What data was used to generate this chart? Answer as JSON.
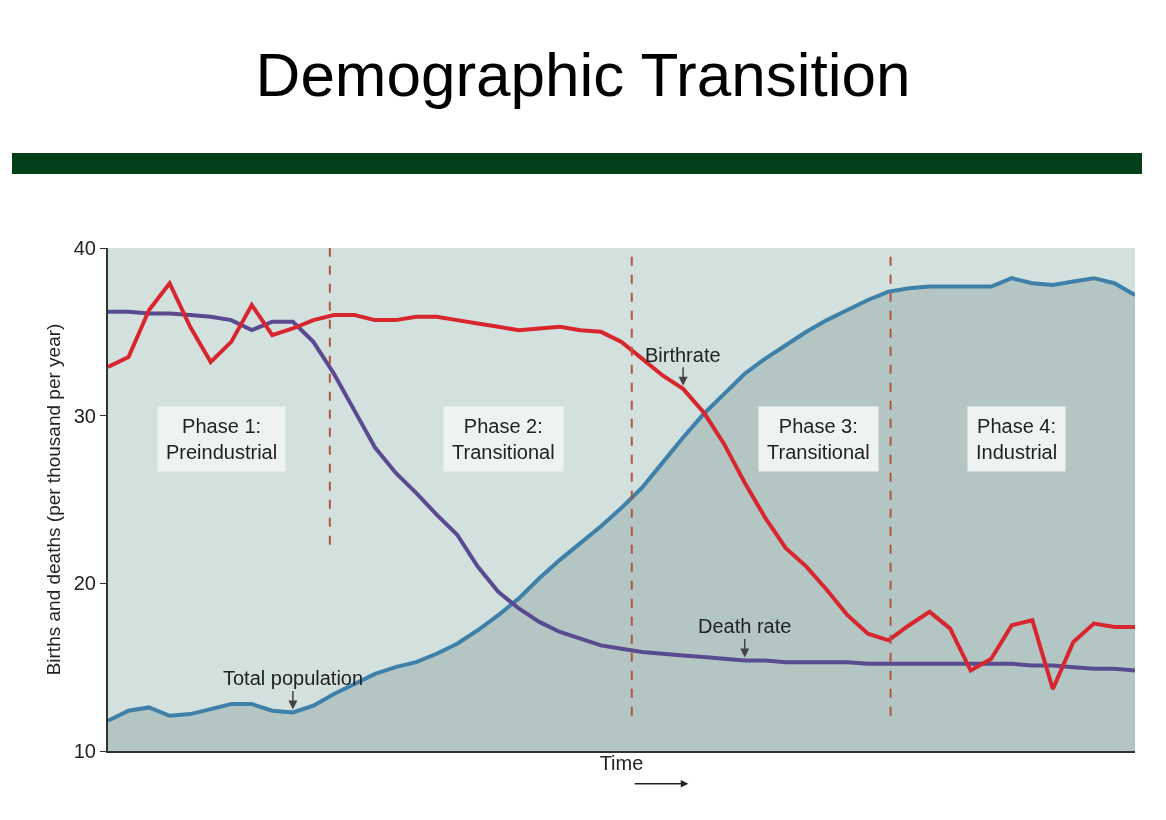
{
  "chart_data": {
    "type": "line",
    "title": "Demographic Transition",
    "xlabel": "Time",
    "ylabel": "Births and deaths (per thousand per year)",
    "ylim": [
      10,
      40
    ],
    "yticks": [
      10,
      20,
      30,
      40
    ],
    "tick_labels": "y",
    "grid": false,
    "legend": false,
    "marker": "none",
    "line_style": "solid",
    "categories": [
      null,
      null,
      null,
      null,
      null,
      null,
      null,
      null,
      null,
      null,
      null,
      null,
      null,
      null,
      null,
      null,
      null,
      null,
      null,
      null,
      null,
      null,
      null,
      null,
      null,
      null,
      null,
      null,
      null,
      null,
      null,
      null,
      null,
      null,
      null,
      null,
      null,
      null,
      null,
      null,
      null,
      null,
      null,
      null,
      null,
      null,
      null,
      null,
      null,
      null,
      null
    ],
    "series": [
      {
        "name": "Total population",
        "type": "area",
        "color": "#3e80a8",
        "values": [
          11.8,
          12.4,
          12.6,
          12.1,
          12.2,
          12.5,
          12.8,
          12.8,
          12.4,
          12.3,
          12.7,
          13.4,
          14.0,
          14.6,
          15.0,
          15.3,
          15.8,
          16.4,
          17.2,
          18.1,
          19.1,
          20.3,
          21.4,
          22.4,
          23.4,
          24.5,
          25.7,
          27.2,
          28.7,
          30.1,
          31.3,
          32.5,
          33.4,
          34.2,
          35.0,
          35.7,
          36.3,
          36.9,
          37.4,
          37.6,
          37.7,
          37.7,
          37.7,
          37.7,
          38.2,
          37.9,
          37.8,
          38.0,
          38.2,
          37.9,
          37.2
        ]
      },
      {
        "name": "Death rate",
        "color": "#5a4a90",
        "values": [
          36.2,
          36.2,
          36.1,
          36.1,
          36.0,
          35.9,
          35.7,
          35.1,
          35.6,
          35.6,
          34.4,
          32.5,
          30.3,
          28.1,
          26.6,
          25.4,
          24.1,
          22.9,
          21.0,
          19.5,
          18.5,
          17.7,
          17.1,
          16.7,
          16.3,
          16.1,
          15.9,
          15.8,
          15.7,
          15.6,
          15.5,
          15.4,
          15.4,
          15.3,
          15.3,
          15.3,
          15.3,
          15.2,
          15.2,
          15.2,
          15.2,
          15.2,
          15.2,
          15.2,
          15.2,
          15.1,
          15.1,
          15.0,
          14.9,
          14.9,
          14.8
        ]
      },
      {
        "name": "Birthrate",
        "color": "#d8262e",
        "values": [
          32.9,
          33.5,
          36.3,
          37.9,
          35.3,
          33.2,
          34.4,
          36.6,
          34.8,
          35.2,
          35.7,
          36.0,
          36.0,
          35.7,
          35.7,
          35.9,
          35.9,
          35.7,
          35.5,
          35.3,
          35.1,
          35.2,
          35.3,
          35.1,
          35.0,
          34.4,
          33.4,
          32.4,
          31.6,
          30.2,
          28.3,
          26.0,
          23.9,
          22.1,
          21.0,
          19.6,
          18.1,
          17.0,
          16.6,
          17.5,
          18.3,
          17.3,
          14.8,
          15.5,
          17.5,
          17.8,
          13.7,
          16.5,
          17.6,
          17.4,
          17.4
        ]
      }
    ],
    "annotations": [
      "Phase 1:\nPreindustrial",
      "Phase 2:\nTransitional",
      "Phase 3:\nTransitional",
      "Phase 4:\nIndustrial"
    ]
  }
}
